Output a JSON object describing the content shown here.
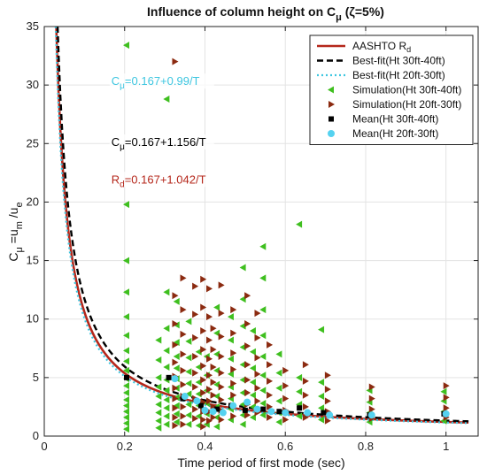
{
  "chart_data": {
    "type": "scatter",
    "title": "Influence of column height on C",
    "title_sub": "μ",
    "title_tail": " (ζ=5%)",
    "xlabel": "Time period of first mode (sec)",
    "ylabel_parts": [
      "C",
      "μ",
      " =u",
      "m",
      " /u",
      "e"
    ],
    "xlim": [
      0,
      1.08
    ],
    "ylim": [
      0,
      35
    ],
    "xticks": [
      0,
      0.2,
      0.4,
      0.6,
      0.8,
      1
    ],
    "xtick_labels": [
      "0",
      "0.2",
      "0.4",
      "0.6",
      "0.8",
      "1"
    ],
    "yticks": [
      0,
      5,
      10,
      15,
      20,
      25,
      30,
      35
    ],
    "ytick_labels": [
      "0",
      "5",
      "10",
      "15",
      "20",
      "25",
      "30",
      "35"
    ],
    "grid": true,
    "legend_position": "top-right",
    "colors": {
      "aashto": "#b5271b",
      "best_fit_30_40": "#000000",
      "best_fit_20_30": "#3ec6e0",
      "sim_30_40": "#3fbf1f",
      "sim_20_30": "#8b2a10",
      "mean_30_40": "#000000",
      "mean_20_30": "#55d2f0",
      "annot_cyan": "#3ec6e0",
      "annot_black": "#000000",
      "annot_red": "#b5271b"
    },
    "curves": [
      {
        "name": "AASHTO R",
        "name_sub": "d",
        "a": 0.167,
        "b": 1.042,
        "style": "solid",
        "key": "aashto"
      },
      {
        "name": "Best-fit(Ht 30ft-40ft)",
        "a": 0.167,
        "b": 1.156,
        "style": "dashed",
        "key": "best_fit_30_40"
      },
      {
        "name": "Best-fit(Ht 20ft-30ft)",
        "a": 0.167,
        "b": 0.99,
        "style": "dotted",
        "key": "best_fit_20_30"
      }
    ],
    "scatter_series": [
      {
        "name": "Simulation(Ht 30ft-40ft)",
        "key": "sim_30_40",
        "marker": "triangle-left",
        "points": [
          [
            0.205,
            33.4
          ],
          [
            0.205,
            19.8
          ],
          [
            0.205,
            15.0
          ],
          [
            0.205,
            12.3
          ],
          [
            0.205,
            10.2
          ],
          [
            0.205,
            8.6
          ],
          [
            0.205,
            7.3
          ],
          [
            0.205,
            6.4
          ],
          [
            0.205,
            5.6
          ],
          [
            0.205,
            4.9
          ],
          [
            0.205,
            4.3
          ],
          [
            0.205,
            3.7
          ],
          [
            0.205,
            3.1
          ],
          [
            0.205,
            2.6
          ],
          [
            0.205,
            2.1
          ],
          [
            0.205,
            1.6
          ],
          [
            0.205,
            1.1
          ],
          [
            0.205,
            0.6
          ],
          [
            0.285,
            8.2
          ],
          [
            0.285,
            6.5
          ],
          [
            0.285,
            5.0
          ],
          [
            0.285,
            4.2
          ],
          [
            0.285,
            3.4
          ],
          [
            0.285,
            2.7
          ],
          [
            0.285,
            2.0
          ],
          [
            0.285,
            1.3
          ],
          [
            0.285,
            0.7
          ],
          [
            0.305,
            28.8
          ],
          [
            0.305,
            12.3
          ],
          [
            0.305,
            9.2
          ],
          [
            0.305,
            7.3
          ],
          [
            0.305,
            5.9
          ],
          [
            0.305,
            4.8
          ],
          [
            0.305,
            3.9
          ],
          [
            0.305,
            3.1
          ],
          [
            0.305,
            2.4
          ],
          [
            0.305,
            1.7
          ],
          [
            0.305,
            1.0
          ],
          [
            0.33,
            11.5
          ],
          [
            0.33,
            9.5
          ],
          [
            0.33,
            8.0
          ],
          [
            0.33,
            6.8
          ],
          [
            0.33,
            5.8
          ],
          [
            0.33,
            4.9
          ],
          [
            0.33,
            4.1
          ],
          [
            0.33,
            3.3
          ],
          [
            0.33,
            2.6
          ],
          [
            0.33,
            1.9
          ],
          [
            0.33,
            1.2
          ],
          [
            0.36,
            9.8
          ],
          [
            0.36,
            8.1
          ],
          [
            0.36,
            6.7
          ],
          [
            0.36,
            5.5
          ],
          [
            0.36,
            4.5
          ],
          [
            0.36,
            3.6
          ],
          [
            0.36,
            2.7
          ],
          [
            0.36,
            1.8
          ],
          [
            0.36,
            1.0
          ],
          [
            0.385,
            7.2
          ],
          [
            0.385,
            5.9
          ],
          [
            0.385,
            4.6
          ],
          [
            0.385,
            3.6
          ],
          [
            0.385,
            2.6
          ],
          [
            0.385,
            1.7
          ],
          [
            0.385,
            0.9
          ],
          [
            0.405,
            6.8
          ],
          [
            0.405,
            5.2
          ],
          [
            0.405,
            3.9
          ],
          [
            0.405,
            2.8
          ],
          [
            0.405,
            1.9
          ],
          [
            0.405,
            1.0
          ],
          [
            0.43,
            11.0
          ],
          [
            0.43,
            8.8
          ],
          [
            0.43,
            7.0
          ],
          [
            0.43,
            5.6
          ],
          [
            0.43,
            4.4
          ],
          [
            0.43,
            3.4
          ],
          [
            0.43,
            2.5
          ],
          [
            0.43,
            1.6
          ],
          [
            0.43,
            0.8
          ],
          [
            0.465,
            10.2
          ],
          [
            0.465,
            8.2
          ],
          [
            0.465,
            6.6
          ],
          [
            0.465,
            5.3
          ],
          [
            0.465,
            4.2
          ],
          [
            0.465,
            3.2
          ],
          [
            0.465,
            2.3
          ],
          [
            0.465,
            1.4
          ],
          [
            0.495,
            14.4
          ],
          [
            0.495,
            11.7
          ],
          [
            0.495,
            9.4
          ],
          [
            0.495,
            7.6
          ],
          [
            0.495,
            6.1
          ],
          [
            0.495,
            4.8
          ],
          [
            0.495,
            3.7
          ],
          [
            0.495,
            2.7
          ],
          [
            0.495,
            1.8
          ],
          [
            0.495,
            1.0
          ],
          [
            0.52,
            9.0
          ],
          [
            0.52,
            7.2
          ],
          [
            0.52,
            5.8
          ],
          [
            0.52,
            4.6
          ],
          [
            0.52,
            3.5
          ],
          [
            0.52,
            2.5
          ],
          [
            0.52,
            1.6
          ],
          [
            0.545,
            16.2
          ],
          [
            0.545,
            13.5
          ],
          [
            0.545,
            10.8
          ],
          [
            0.545,
            8.6
          ],
          [
            0.545,
            6.8
          ],
          [
            0.545,
            5.2
          ],
          [
            0.545,
            3.9
          ],
          [
            0.545,
            2.8
          ],
          [
            0.545,
            1.8
          ],
          [
            0.585,
            7.0
          ],
          [
            0.585,
            5.4
          ],
          [
            0.585,
            4.1
          ],
          [
            0.585,
            3.0
          ],
          [
            0.585,
            2.0
          ],
          [
            0.585,
            1.2
          ],
          [
            0.635,
            18.1
          ],
          [
            0.635,
            5.0
          ],
          [
            0.635,
            3.8
          ],
          [
            0.635,
            2.7
          ],
          [
            0.635,
            1.7
          ],
          [
            0.69,
            9.1
          ],
          [
            0.69,
            4.6
          ],
          [
            0.69,
            3.4
          ],
          [
            0.69,
            2.4
          ],
          [
            0.69,
            1.4
          ],
          [
            0.81,
            3.9
          ],
          [
            0.81,
            2.9
          ],
          [
            0.81,
            2.0
          ],
          [
            0.81,
            1.2
          ],
          [
            0.995,
            3.8
          ],
          [
            0.995,
            3.0
          ],
          [
            0.995,
            2.1
          ],
          [
            0.995,
            1.3
          ]
        ]
      },
      {
        "name": "Simulation(Ht 20ft-30ft)",
        "key": "sim_20_30",
        "marker": "triangle-right",
        "points": [
          [
            0.325,
            32.0
          ],
          [
            0.325,
            12.0
          ],
          [
            0.325,
            9.6
          ],
          [
            0.325,
            7.8
          ],
          [
            0.325,
            6.3
          ],
          [
            0.325,
            5.1
          ],
          [
            0.325,
            4.1
          ],
          [
            0.325,
            3.2
          ],
          [
            0.325,
            2.4
          ],
          [
            0.325,
            1.6
          ],
          [
            0.325,
            0.9
          ],
          [
            0.345,
            13.5
          ],
          [
            0.345,
            10.8
          ],
          [
            0.345,
            8.7
          ],
          [
            0.345,
            7.0
          ],
          [
            0.345,
            5.6
          ],
          [
            0.345,
            4.4
          ],
          [
            0.345,
            3.4
          ],
          [
            0.345,
            2.5
          ],
          [
            0.345,
            1.7
          ],
          [
            0.345,
            1.0
          ],
          [
            0.375,
            12.8
          ],
          [
            0.375,
            10.4
          ],
          [
            0.375,
            8.4
          ],
          [
            0.375,
            6.8
          ],
          [
            0.375,
            5.4
          ],
          [
            0.375,
            4.2
          ],
          [
            0.375,
            3.2
          ],
          [
            0.375,
            2.3
          ],
          [
            0.375,
            1.5
          ],
          [
            0.395,
            13.4
          ],
          [
            0.395,
            11.0
          ],
          [
            0.395,
            9.0
          ],
          [
            0.395,
            7.4
          ],
          [
            0.395,
            6.0
          ],
          [
            0.395,
            4.8
          ],
          [
            0.395,
            3.7
          ],
          [
            0.395,
            2.9
          ],
          [
            0.395,
            2.1
          ],
          [
            0.395,
            1.4
          ],
          [
            0.395,
            0.8
          ],
          [
            0.41,
            12.6
          ],
          [
            0.41,
            10.2
          ],
          [
            0.41,
            8.2
          ],
          [
            0.41,
            6.6
          ],
          [
            0.41,
            5.2
          ],
          [
            0.41,
            4.0
          ],
          [
            0.41,
            3.0
          ],
          [
            0.41,
            2.1
          ],
          [
            0.41,
            1.3
          ],
          [
            0.42,
            9.2
          ],
          [
            0.42,
            7.4
          ],
          [
            0.42,
            5.9
          ],
          [
            0.42,
            4.6
          ],
          [
            0.42,
            3.5
          ],
          [
            0.42,
            2.5
          ],
          [
            0.42,
            1.6
          ],
          [
            0.44,
            12.9
          ],
          [
            0.44,
            10.5
          ],
          [
            0.44,
            8.5
          ],
          [
            0.44,
            6.8
          ],
          [
            0.44,
            5.4
          ],
          [
            0.44,
            4.2
          ],
          [
            0.44,
            3.1
          ],
          [
            0.44,
            2.2
          ],
          [
            0.44,
            1.4
          ],
          [
            0.47,
            10.8
          ],
          [
            0.47,
            8.8
          ],
          [
            0.47,
            7.1
          ],
          [
            0.47,
            5.7
          ],
          [
            0.47,
            4.5
          ],
          [
            0.47,
            3.5
          ],
          [
            0.47,
            2.6
          ],
          [
            0.47,
            1.7
          ],
          [
            0.505,
            12.0
          ],
          [
            0.505,
            9.6
          ],
          [
            0.505,
            7.7
          ],
          [
            0.505,
            6.1
          ],
          [
            0.505,
            4.8
          ],
          [
            0.505,
            3.7
          ],
          [
            0.505,
            2.7
          ],
          [
            0.505,
            1.8
          ],
          [
            0.53,
            10.5
          ],
          [
            0.53,
            8.4
          ],
          [
            0.53,
            6.7
          ],
          [
            0.53,
            5.3
          ],
          [
            0.53,
            4.1
          ],
          [
            0.53,
            3.0
          ],
          [
            0.53,
            2.0
          ],
          [
            0.56,
            7.8
          ],
          [
            0.56,
            6.1
          ],
          [
            0.56,
            4.7
          ],
          [
            0.56,
            3.5
          ],
          [
            0.56,
            2.5
          ],
          [
            0.56,
            1.6
          ],
          [
            0.6,
            5.6
          ],
          [
            0.6,
            4.3
          ],
          [
            0.6,
            3.2
          ],
          [
            0.6,
            2.2
          ],
          [
            0.6,
            1.4
          ],
          [
            0.65,
            6.1
          ],
          [
            0.65,
            4.7
          ],
          [
            0.65,
            3.5
          ],
          [
            0.65,
            2.5
          ],
          [
            0.65,
            1.6
          ],
          [
            0.705,
            5.2
          ],
          [
            0.705,
            4.0
          ],
          [
            0.705,
            3.0
          ],
          [
            0.705,
            2.1
          ],
          [
            0.705,
            1.3
          ],
          [
            0.815,
            4.2
          ],
          [
            0.815,
            3.2
          ],
          [
            0.815,
            2.3
          ],
          [
            0.815,
            1.5
          ],
          [
            1.0,
            4.3
          ],
          [
            1.0,
            3.3
          ],
          [
            1.0,
            2.4
          ],
          [
            1.0,
            1.6
          ]
        ]
      },
      {
        "name": "Mean(Ht 30ft-40ft)",
        "key": "mean_30_40",
        "marker": "square",
        "points": [
          [
            0.205,
            5.0
          ],
          [
            0.31,
            5.0
          ],
          [
            0.345,
            3.2
          ],
          [
            0.39,
            2.6
          ],
          [
            0.43,
            2.3
          ],
          [
            0.465,
            2.6
          ],
          [
            0.5,
            2.2
          ],
          [
            0.545,
            2.3
          ],
          [
            0.585,
            2.1
          ],
          [
            0.635,
            2.4
          ],
          [
            0.695,
            2.0
          ],
          [
            0.81,
            1.8
          ],
          [
            0.995,
            1.9
          ]
        ]
      },
      {
        "name": "Mean(Ht 20ft-30ft)",
        "key": "mean_20_30",
        "marker": "circle",
        "points": [
          [
            0.325,
            4.9
          ],
          [
            0.35,
            3.4
          ],
          [
            0.38,
            3.0
          ],
          [
            0.4,
            2.2
          ],
          [
            0.42,
            2.1
          ],
          [
            0.445,
            2.0
          ],
          [
            0.47,
            2.6
          ],
          [
            0.505,
            2.9
          ],
          [
            0.53,
            2.3
          ],
          [
            0.565,
            2.1
          ],
          [
            0.6,
            2.0
          ],
          [
            0.655,
            2.0
          ],
          [
            0.71,
            1.8
          ],
          [
            0.815,
            1.8
          ],
          [
            1.0,
            1.9
          ]
        ]
      }
    ],
    "annotations": [
      {
        "key": "annot_cyan",
        "prefix": "C",
        "sub": "μ",
        "suffix": "=0.167+0.99/T",
        "x": 0.167,
        "y": 30.0
      },
      {
        "key": "annot_black",
        "prefix": "C",
        "sub": "μ",
        "suffix": "=0.167+1.156/T",
        "x": 0.167,
        "y": 24.8
      },
      {
        "key": "annot_red",
        "prefix": "R",
        "sub": "d",
        "suffix": "=0.167+1.042/T",
        "x": 0.167,
        "y": 21.6
      }
    ]
  }
}
